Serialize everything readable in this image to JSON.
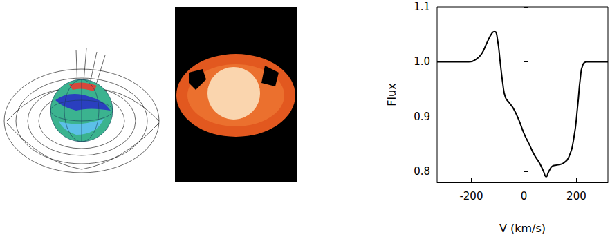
{
  "chart_data": {
    "type": "line",
    "x_label": "V (km/s)",
    "y_label": "Flux",
    "x": [
      -330,
      -250,
      -210,
      -180,
      -160,
      -140,
      -120,
      -110,
      -100,
      -90,
      -80,
      -70,
      -55,
      -40,
      -20,
      0,
      20,
      40,
      60,
      75,
      85,
      95,
      110,
      130,
      150,
      170,
      190,
      205,
      215,
      225,
      240,
      320
    ],
    "values": [
      1.0,
      1.0,
      1.0,
      1.005,
      1.015,
      1.035,
      1.053,
      1.055,
      1.04,
      1.0,
      0.96,
      0.935,
      0.925,
      0.915,
      0.895,
      0.87,
      0.85,
      0.83,
      0.815,
      0.8,
      0.79,
      0.8,
      0.81,
      0.812,
      0.815,
      0.825,
      0.86,
      0.92,
      0.97,
      0.995,
      1.0,
      1.0
    ],
    "color": "#000000",
    "xlim": [
      -330,
      320
    ],
    "xticks": [
      -200,
      0,
      200
    ],
    "ylim": [
      0.78,
      1.1
    ],
    "yticks": [
      0.8,
      0.9,
      {
        "value": 1.0,
        "label": "1.0"
      },
      1.1
    ],
    "grid": false
  }
}
